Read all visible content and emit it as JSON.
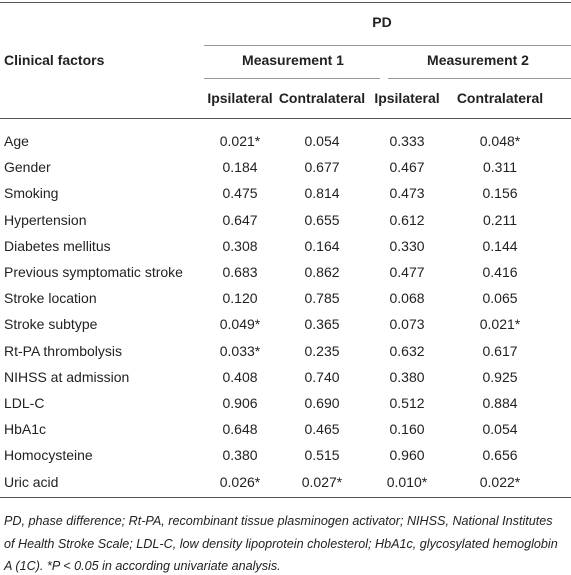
{
  "table": {
    "group_header": "PD",
    "row_header": "Clinical factors",
    "measurements": [
      "Measurement 1",
      "Measurement 2"
    ],
    "sub_headers": [
      "Ipsilateral",
      "Contralateral",
      "Ipsilateral",
      "Contralateral"
    ],
    "rows": [
      [
        "Age",
        "0.021*",
        "0.054",
        "0.333",
        "0.048*"
      ],
      [
        "Gender",
        "0.184",
        "0.677",
        "0.467",
        "0.311"
      ],
      [
        "Smoking",
        "0.475",
        "0.814",
        "0.473",
        "0.156"
      ],
      [
        "Hypertension",
        "0.647",
        "0.655",
        "0.612",
        "0.211"
      ],
      [
        "Diabetes mellitus",
        "0.308",
        "0.164",
        "0.330",
        "0.144"
      ],
      [
        "Previous symptomatic stroke",
        "0.683",
        "0.862",
        "0.477",
        "0.416"
      ],
      [
        "Stroke location",
        "0.120",
        "0.785",
        "0.068",
        "0.065"
      ],
      [
        "Stroke subtype",
        "0.049*",
        "0.365",
        "0.073",
        "0.021*"
      ],
      [
        "Rt-PA thrombolysis",
        "0.033*",
        "0.235",
        "0.632",
        "0.617"
      ],
      [
        "NIHSS at admission",
        "0.408",
        "0.740",
        "0.380",
        "0.925"
      ],
      [
        "LDL-C",
        "0.906",
        "0.690",
        "0.512",
        "0.884"
      ],
      [
        "HbA1c",
        "0.648",
        "0.465",
        "0.160",
        "0.054"
      ],
      [
        "Homocysteine",
        "0.380",
        "0.515",
        "0.960",
        "0.656"
      ],
      [
        "Uric acid",
        "0.026*",
        "0.027*",
        "0.010*",
        "0.022*"
      ]
    ]
  },
  "footnote": "PD, phase difference; Rt-PA, recombinant tissue plasminogen activator; NIHSS, National Institutes of Health Stroke Scale; LDL-C, low density lipoprotein cholesterol; HbA1c, glycosylated hemoglobin A (1C). *P < 0.05 in according univariate analysis."
}
